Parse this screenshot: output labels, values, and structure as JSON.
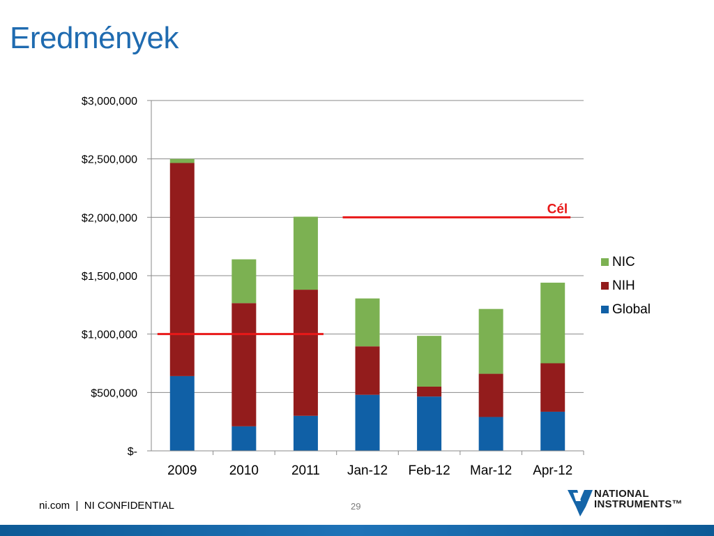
{
  "slide": {
    "title": "Eredmények",
    "footer": "ni.com  |  NI CONFIDENTIAL",
    "page_number": "29",
    "logo_line1": "NATIONAL",
    "logo_line2": "INSTRUMENTS™",
    "colors": {
      "title": "#1f6bb0",
      "bottom_bar": "#1565a8"
    }
  },
  "chart_data": {
    "type": "bar",
    "stacked": true,
    "categories": [
      "2009",
      "2010",
      "2011",
      "Jan-12",
      "Feb-12",
      "Mar-12",
      "Apr-12"
    ],
    "series": [
      {
        "name": "Global",
        "color": "#1060a6",
        "values": [
          640000,
          210000,
          300000,
          480000,
          465000,
          290000,
          335000
        ]
      },
      {
        "name": "NIH",
        "color": "#931c1c",
        "values": [
          1825000,
          1055000,
          1080000,
          415000,
          85000,
          370000,
          415000
        ]
      },
      {
        "name": "NIC",
        "color": "#7cb152",
        "values": [
          35000,
          375000,
          625000,
          410000,
          435000,
          555000,
          690000
        ]
      }
    ],
    "ylim": [
      0,
      3000000
    ],
    "yticks": [
      0,
      500000,
      1000000,
      1500000,
      2000000,
      2500000,
      3000000
    ],
    "ytick_labels": [
      "$-",
      "$500,000",
      "$1,000,000",
      "$1,500,000",
      "$2,000,000",
      "$2,500,000",
      "$3,000,000"
    ],
    "grid": true,
    "legend": "right",
    "legend_order": [
      "NIC",
      "NIH",
      "Global"
    ],
    "target_lines": [
      {
        "value": 1000000,
        "from_category": "2009",
        "to_category": "2011",
        "color": "#e81818"
      },
      {
        "value": 2000000,
        "from_category": "Jan-12",
        "to_category": "Apr-12",
        "color": "#e81818",
        "label": "Cél"
      }
    ]
  }
}
